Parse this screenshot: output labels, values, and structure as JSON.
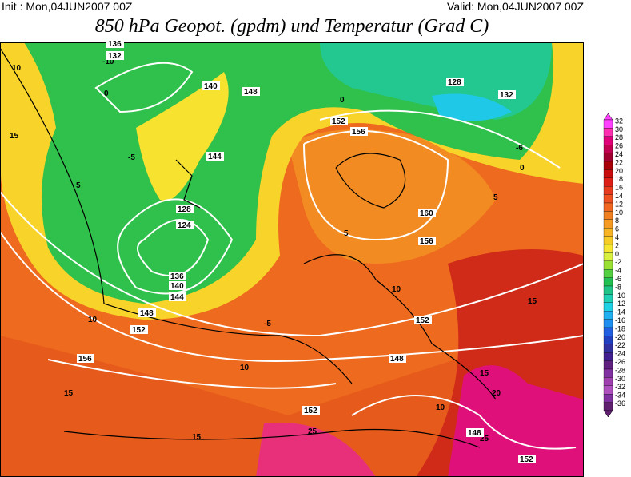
{
  "header": {
    "init": "Init : Mon,04JUN2007 00Z",
    "valid": "Valid: Mon,04JUN2007 00Z",
    "title": "850 hPa Geopot. (gpdm) und Temperatur (Grad C)"
  },
  "colorbar": {
    "labels": [
      32,
      30,
      28,
      26,
      24,
      22,
      20,
      18,
      16,
      14,
      12,
      10,
      8,
      6,
      4,
      2,
      0,
      -2,
      -4,
      -6,
      -8,
      -10,
      -12,
      -14,
      -16,
      -18,
      -20,
      -22,
      -24,
      -26,
      -28,
      -30,
      -32,
      -34,
      -36
    ],
    "colors": [
      "#ff40ff",
      "#ff2fb0",
      "#e0007a",
      "#c00050",
      "#a00030",
      "#a80008",
      "#c80c0c",
      "#dc1e14",
      "#e63a1c",
      "#ee5020",
      "#f06820",
      "#f08020",
      "#f59a22",
      "#f8b424",
      "#f8cc26",
      "#f6e632",
      "#d8f040",
      "#9ae034",
      "#52d040",
      "#22c050",
      "#20c486",
      "#20d0b4",
      "#20d0e6",
      "#20b0f2",
      "#2090f0",
      "#2060e0",
      "#2040c0",
      "#3030a0",
      "#402090",
      "#602080",
      "#8030a0",
      "#a040b0",
      "#b050c0",
      "#8030a0",
      "#602070"
    ]
  },
  "map_labels": {
    "temperature": [
      "10",
      "15",
      "-5",
      "0",
      "5",
      "-10",
      "10",
      "15",
      "10",
      "5",
      "0",
      "-5",
      "10",
      "15",
      "20",
      "25",
      "25",
      "15",
      "10",
      "-6",
      "0",
      "5",
      "15"
    ],
    "geopotential": [
      "136",
      "132",
      "140",
      "148",
      "152",
      "156",
      "144",
      "128",
      "124",
      "148",
      "152",
      "156",
      "160",
      "156",
      "152",
      "148",
      "152",
      "136",
      "140",
      "144",
      "128",
      "132",
      "148",
      "152"
    ]
  }
}
